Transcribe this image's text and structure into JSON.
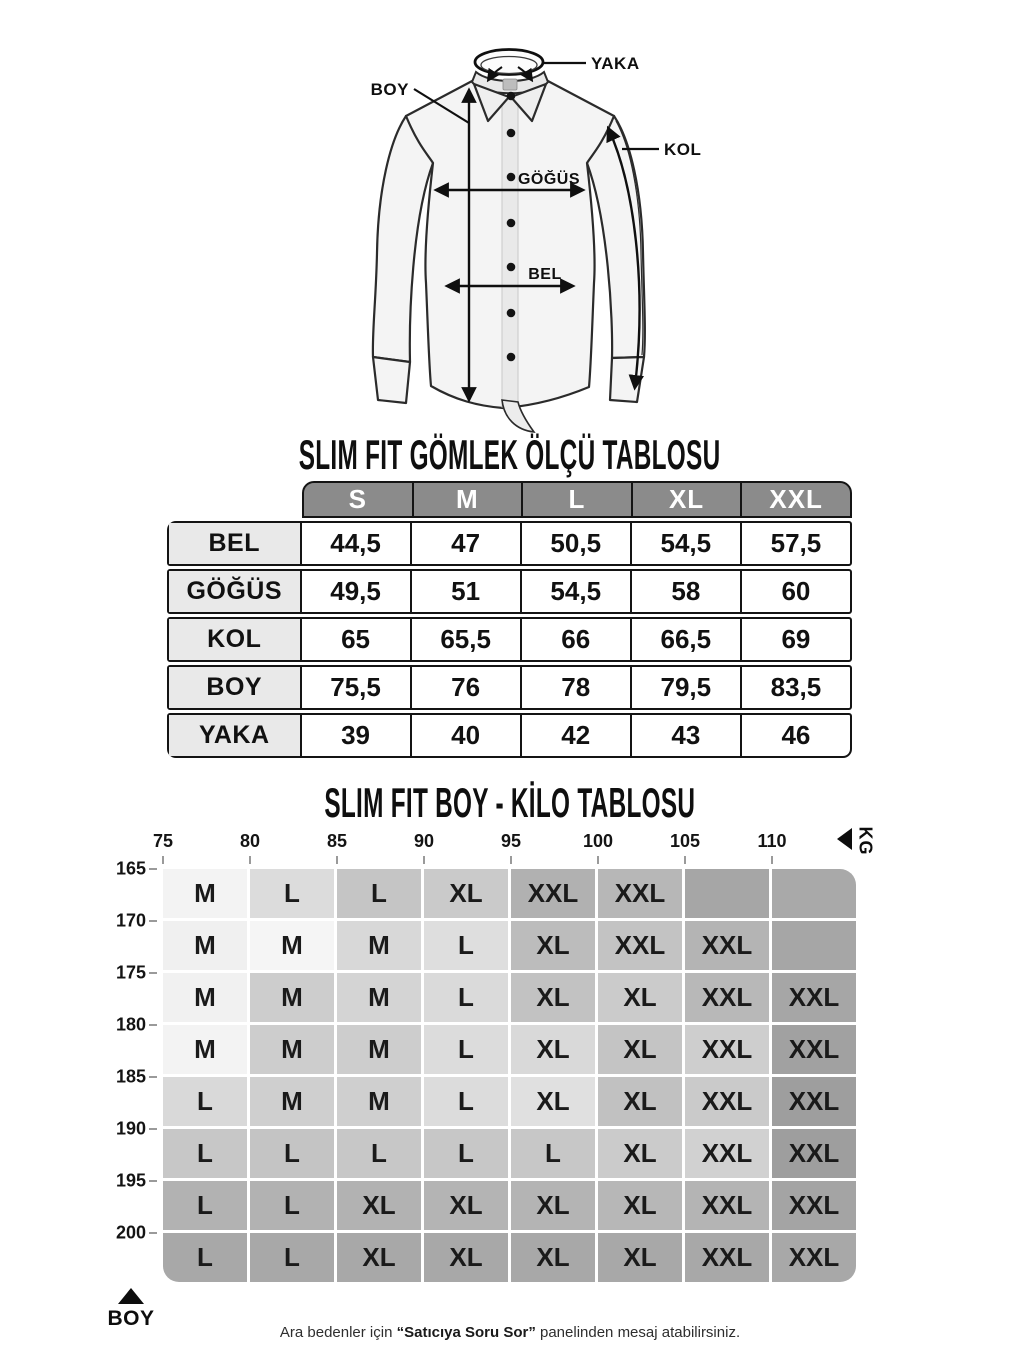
{
  "page": {
    "background": "#ffffff"
  },
  "diagram": {
    "labels": {
      "yaka": "YAKA",
      "boy": "BOY",
      "kol": "KOL",
      "gogus": "GÖĞÜS",
      "bel": "BEL"
    }
  },
  "size_table": {
    "title": "SLIM FIT GÖMLEK ÖLÇÜ TABLOSU",
    "header_bg": "#8b8b8b",
    "label_bg": "#e9e9e9",
    "border_color": "#141414",
    "columns": [
      "S",
      "M",
      "L",
      "XL",
      "XXL"
    ],
    "rows": [
      {
        "label": "BEL",
        "values": [
          "44,5",
          "47",
          "50,5",
          "54,5",
          "57,5"
        ]
      },
      {
        "label": "GÖĞÜS",
        "values": [
          "49,5",
          "51",
          "54,5",
          "58",
          "60"
        ]
      },
      {
        "label": "KOL",
        "values": [
          "65",
          "65,5",
          "66",
          "66,5",
          "69"
        ]
      },
      {
        "label": "BOY",
        "values": [
          "75,5",
          "76",
          "78",
          "79,5",
          "83,5"
        ]
      },
      {
        "label": "YAKA",
        "values": [
          "39",
          "40",
          "42",
          "43",
          "46"
        ]
      }
    ]
  },
  "kilo_table": {
    "title": "SLIM FIT BOY - KİLO TABLOSU",
    "kg_axis": {
      "label": "KG",
      "ticks": [
        "75",
        "80",
        "85",
        "90",
        "95",
        "100",
        "105",
        "110"
      ]
    },
    "boy_axis": {
      "label": "BOY",
      "ticks": [
        "165",
        "170",
        "175",
        "180",
        "185",
        "190",
        "195",
        "200"
      ]
    },
    "rows": [
      {
        "cells": [
          {
            "label": "M",
            "bg": "#f3f3f3"
          },
          {
            "label": "L",
            "bg": "#dcdcdc"
          },
          {
            "label": "L",
            "bg": "#c5c5c5"
          },
          {
            "label": "XL",
            "bg": "#cacaca"
          },
          {
            "label": "XXL",
            "bg": "#b1b1b1"
          },
          {
            "label": "XXL",
            "bg": "#b7b7b7"
          },
          {
            "label": "",
            "bg": "#a6a6a6"
          },
          {
            "label": "",
            "bg": "#a9a9a9"
          }
        ]
      },
      {
        "cells": [
          {
            "label": "M",
            "bg": "#f0f0f0"
          },
          {
            "label": "M",
            "bg": "#f5f5f5"
          },
          {
            "label": "M",
            "bg": "#d8d8d8"
          },
          {
            "label": "L",
            "bg": "#dedede"
          },
          {
            "label": "XL",
            "bg": "#bcbcbc"
          },
          {
            "label": "XXL",
            "bg": "#c3c3c3"
          },
          {
            "label": "XXL",
            "bg": "#b4b4b4"
          },
          {
            "label": "",
            "bg": "#a6a6a6"
          }
        ]
      },
      {
        "cells": [
          {
            "label": "M",
            "bg": "#f1f1f1"
          },
          {
            "label": "M",
            "bg": "#cdcdcd"
          },
          {
            "label": "M",
            "bg": "#d4d4d4"
          },
          {
            "label": "L",
            "bg": "#dadada"
          },
          {
            "label": "XL",
            "bg": "#c2c2c2"
          },
          {
            "label": "XL",
            "bg": "#cbcbcb"
          },
          {
            "label": "XXL",
            "bg": "#b8b8b8"
          },
          {
            "label": "XXL",
            "bg": "#a6a6a6"
          }
        ]
      },
      {
        "cells": [
          {
            "label": "M",
            "bg": "#f3f3f3"
          },
          {
            "label": "M",
            "bg": "#cdcdcd"
          },
          {
            "label": "M",
            "bg": "#cdcdcd"
          },
          {
            "label": "L",
            "bg": "#dcdcdc"
          },
          {
            "label": "XL",
            "bg": "#d9d9d9"
          },
          {
            "label": "XL",
            "bg": "#c4c4c4"
          },
          {
            "label": "XXL",
            "bg": "#cecece"
          },
          {
            "label": "XXL",
            "bg": "#a1a1a1"
          }
        ]
      },
      {
        "cells": [
          {
            "label": "L",
            "bg": "#d9d9d9"
          },
          {
            "label": "M",
            "bg": "#cfcfcf"
          },
          {
            "label": "M",
            "bg": "#cfcfcf"
          },
          {
            "label": "L",
            "bg": "#dcdcdc"
          },
          {
            "label": "XL",
            "bg": "#e0e0e0"
          },
          {
            "label": "XL",
            "bg": "#c1c1c1"
          },
          {
            "label": "XXL",
            "bg": "#cacaca"
          },
          {
            "label": "XXL",
            "bg": "#9e9e9e"
          }
        ]
      },
      {
        "cells": [
          {
            "label": "L",
            "bg": "#c7c7c7"
          },
          {
            "label": "L",
            "bg": "#c4c4c4"
          },
          {
            "label": "L",
            "bg": "#c7c7c7"
          },
          {
            "label": "L",
            "bg": "#c7c7c7"
          },
          {
            "label": "L",
            "bg": "#c7c7c7"
          },
          {
            "label": "XL",
            "bg": "#cbcbcb"
          },
          {
            "label": "XXL",
            "bg": "#d1d1d1"
          },
          {
            "label": "XXL",
            "bg": "#9e9e9e"
          }
        ]
      },
      {
        "cells": [
          {
            "label": "L",
            "bg": "#b2b2b2"
          },
          {
            "label": "L",
            "bg": "#b2b2b2"
          },
          {
            "label": "XL",
            "bg": "#b2b2b2"
          },
          {
            "label": "XL",
            "bg": "#b4b4b4"
          },
          {
            "label": "XL",
            "bg": "#b4b4b4"
          },
          {
            "label": "XL",
            "bg": "#b7b7b7"
          },
          {
            "label": "XXL",
            "bg": "#b4b4b4"
          },
          {
            "label": "XXL",
            "bg": "#a4a4a4"
          }
        ]
      },
      {
        "cells": [
          {
            "label": "L",
            "bg": "#a8a8a8"
          },
          {
            "label": "L",
            "bg": "#a8a8a8"
          },
          {
            "label": "XL",
            "bg": "#a8a8a8"
          },
          {
            "label": "XL",
            "bg": "#a8a8a8"
          },
          {
            "label": "XL",
            "bg": "#a8a8a8"
          },
          {
            "label": "XL",
            "bg": "#a8a8a8"
          },
          {
            "label": "XXL",
            "bg": "#a8a8a8"
          },
          {
            "label": "XXL",
            "bg": "#a8a8a8"
          }
        ]
      }
    ]
  },
  "footer": {
    "prefix": "Ara bedenler için ",
    "bold": "“Satıcıya Soru Sor”",
    "suffix": " panelinden mesaj atabilirsiniz."
  },
  "chart_data": [
    {
      "type": "table",
      "title": "SLIM FIT GÖMLEK ÖLÇÜ TABLOSU",
      "columns": [
        "S",
        "M",
        "L",
        "XL",
        "XXL"
      ],
      "rows": [
        [
          "BEL",
          "44,5",
          "47",
          "50,5",
          "54,5",
          "57,5"
        ],
        [
          "GÖĞÜS",
          "49,5",
          "51",
          "54,5",
          "58",
          "60"
        ],
        [
          "KOL",
          "65",
          "65,5",
          "66",
          "66,5",
          "69"
        ],
        [
          "BOY",
          "75,5",
          "76",
          "78",
          "79,5",
          "83,5"
        ],
        [
          "YAKA",
          "39",
          "40",
          "42",
          "43",
          "46"
        ]
      ]
    },
    {
      "type": "heatmap",
      "title": "SLIM FIT BOY - KİLO TABLOSU",
      "xlabel": "KG",
      "ylabel": "BOY",
      "x_ticks": [
        75,
        80,
        85,
        90,
        95,
        100,
        105,
        110
      ],
      "y_ticks": [
        165,
        170,
        175,
        180,
        185,
        190,
        195,
        200
      ],
      "matrix": [
        [
          "M",
          "L",
          "L",
          "XL",
          "XXL",
          "XXL",
          "",
          ""
        ],
        [
          "M",
          "M",
          "M",
          "L",
          "XL",
          "XXL",
          "XXL",
          ""
        ],
        [
          "M",
          "M",
          "M",
          "L",
          "XL",
          "XL",
          "XXL",
          "XXL"
        ],
        [
          "M",
          "M",
          "M",
          "L",
          "XL",
          "XL",
          "XXL",
          "XXL"
        ],
        [
          "L",
          "M",
          "M",
          "L",
          "XL",
          "XL",
          "XXL",
          "XXL"
        ],
        [
          "L",
          "L",
          "L",
          "L",
          "L",
          "XL",
          "XXL",
          "XXL"
        ],
        [
          "L",
          "L",
          "XL",
          "XL",
          "XL",
          "XL",
          "XXL",
          "XXL"
        ],
        [
          "L",
          "L",
          "XL",
          "XL",
          "XL",
          "XL",
          "XXL",
          "XXL"
        ]
      ]
    }
  ]
}
